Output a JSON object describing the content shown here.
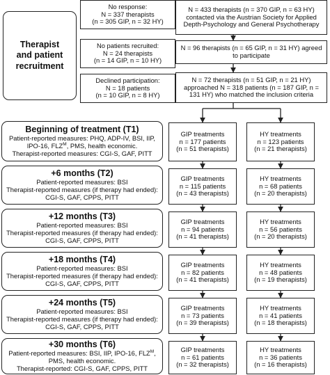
{
  "section_title": [
    "Therapist",
    "and patient",
    "recruitment"
  ],
  "recruitment": {
    "no_response": [
      "No response:",
      "N = 337 therapists",
      "(n = 305 GIP, n = 32 HY)"
    ],
    "contacted": [
      "N = 433 therapists (n = 370 GIP, n = 63 HY)",
      "contacted via the Austrian Society for Applied",
      "Depth-Psychology and General Psychotherapy"
    ],
    "no_patients": [
      "No patients recruited:",
      "N = 24 therapists",
      "(n = 14 GIP, n = 10 HY)"
    ],
    "agreed": [
      "N = 96 therapists (n = 65 GIP, n = 31 HY) agreed",
      "to participate"
    ],
    "declined": [
      "Declined participation:",
      "N = 18 patients",
      "(n = 10 GIP, n = 8 HY)"
    ],
    "approached": [
      "N = 72 therapists (n = 51 GIP, n = 21 HY)",
      "approached N = 318 patients (n = 187 GIP, n =",
      "131 HY) who matched the inclusion criteria"
    ]
  },
  "stages": [
    {
      "title": "Beginning of treatment (T1)",
      "lines": [
        "Patient-reported measures: PHQ, ADP-IV, BSI, IIP,",
        "IPO-16, FLZ{M}, PMS, health economic.",
        "Therapist-reported measures: CGI-S, GAF, PITT"
      ],
      "gip": [
        "GIP treatments",
        "n = 177 patients",
        "(n = 51 therapists)"
      ],
      "hy": [
        "HY treatments",
        "n = 123 patients",
        "(n = 21 therapists)"
      ]
    },
    {
      "title": "+6 months (T2)",
      "lines": [
        "Patient-reported measures: BSI",
        "Therapist-reported measures (if therapy had ended):",
        "CGI-S, GAF, CPPS, PITT"
      ],
      "gip": [
        "GIP treatments",
        "n = 115 patients",
        "(n = 43 therapists)"
      ],
      "hy": [
        "HY treatments",
        "n = 68 patients",
        "(n = 20 therapists)"
      ]
    },
    {
      "title": "+12 months (T3)",
      "lines": [
        "Patient-reported measures: BSI",
        "Therapist-reported measures (if therapy had ended):",
        "CGI-S, GAF, CPPS, PITT"
      ],
      "gip": [
        "GIP treatments",
        "n = 94 patients",
        "(n = 41 therapists)"
      ],
      "hy": [
        "HY treatments",
        "n = 56 patients",
        "(n = 20 therapists)"
      ]
    },
    {
      "title": "+18 months (T4)",
      "lines": [
        "Patient-reported measures: BSI",
        "Therapist-reported measures (if therapy had ended):",
        "CGI-S, GAF, CPPS, PITT"
      ],
      "gip": [
        "GIP treatments",
        "n = 82 patients",
        "(n = 41 therapists)"
      ],
      "hy": [
        "HY treatments",
        "n = 48 patients",
        "(n = 19 therapists)"
      ]
    },
    {
      "title": "+24 months (T5)",
      "lines": [
        "Patient-reported measures: BSI",
        "Therapist-reported measures (if therapy had ended):",
        "CGI-S, GAF, CPPS, PITT"
      ],
      "gip": [
        "GIP treatments",
        "n = 73 patients",
        "(n = 39 therapists)"
      ],
      "hy": [
        "HY treatments",
        "n = 41 patients",
        "(n = 18 therapists)"
      ]
    },
    {
      "title": "+30 months (T6)",
      "lines": [
        "Patient-reported measures: BSI, IIP, IPO-16, FLZ{M},",
        "PMS, health economic.",
        "Therapist-reported: CGI-S, GAF, CPPS, PITT"
      ],
      "gip": [
        "GIP treatments",
        "n = 61 patients",
        "(n = 32 therapists)"
      ],
      "hy": [
        "HY treatments",
        "n = 36 patients",
        "(n = 16 therapists)"
      ]
    }
  ]
}
